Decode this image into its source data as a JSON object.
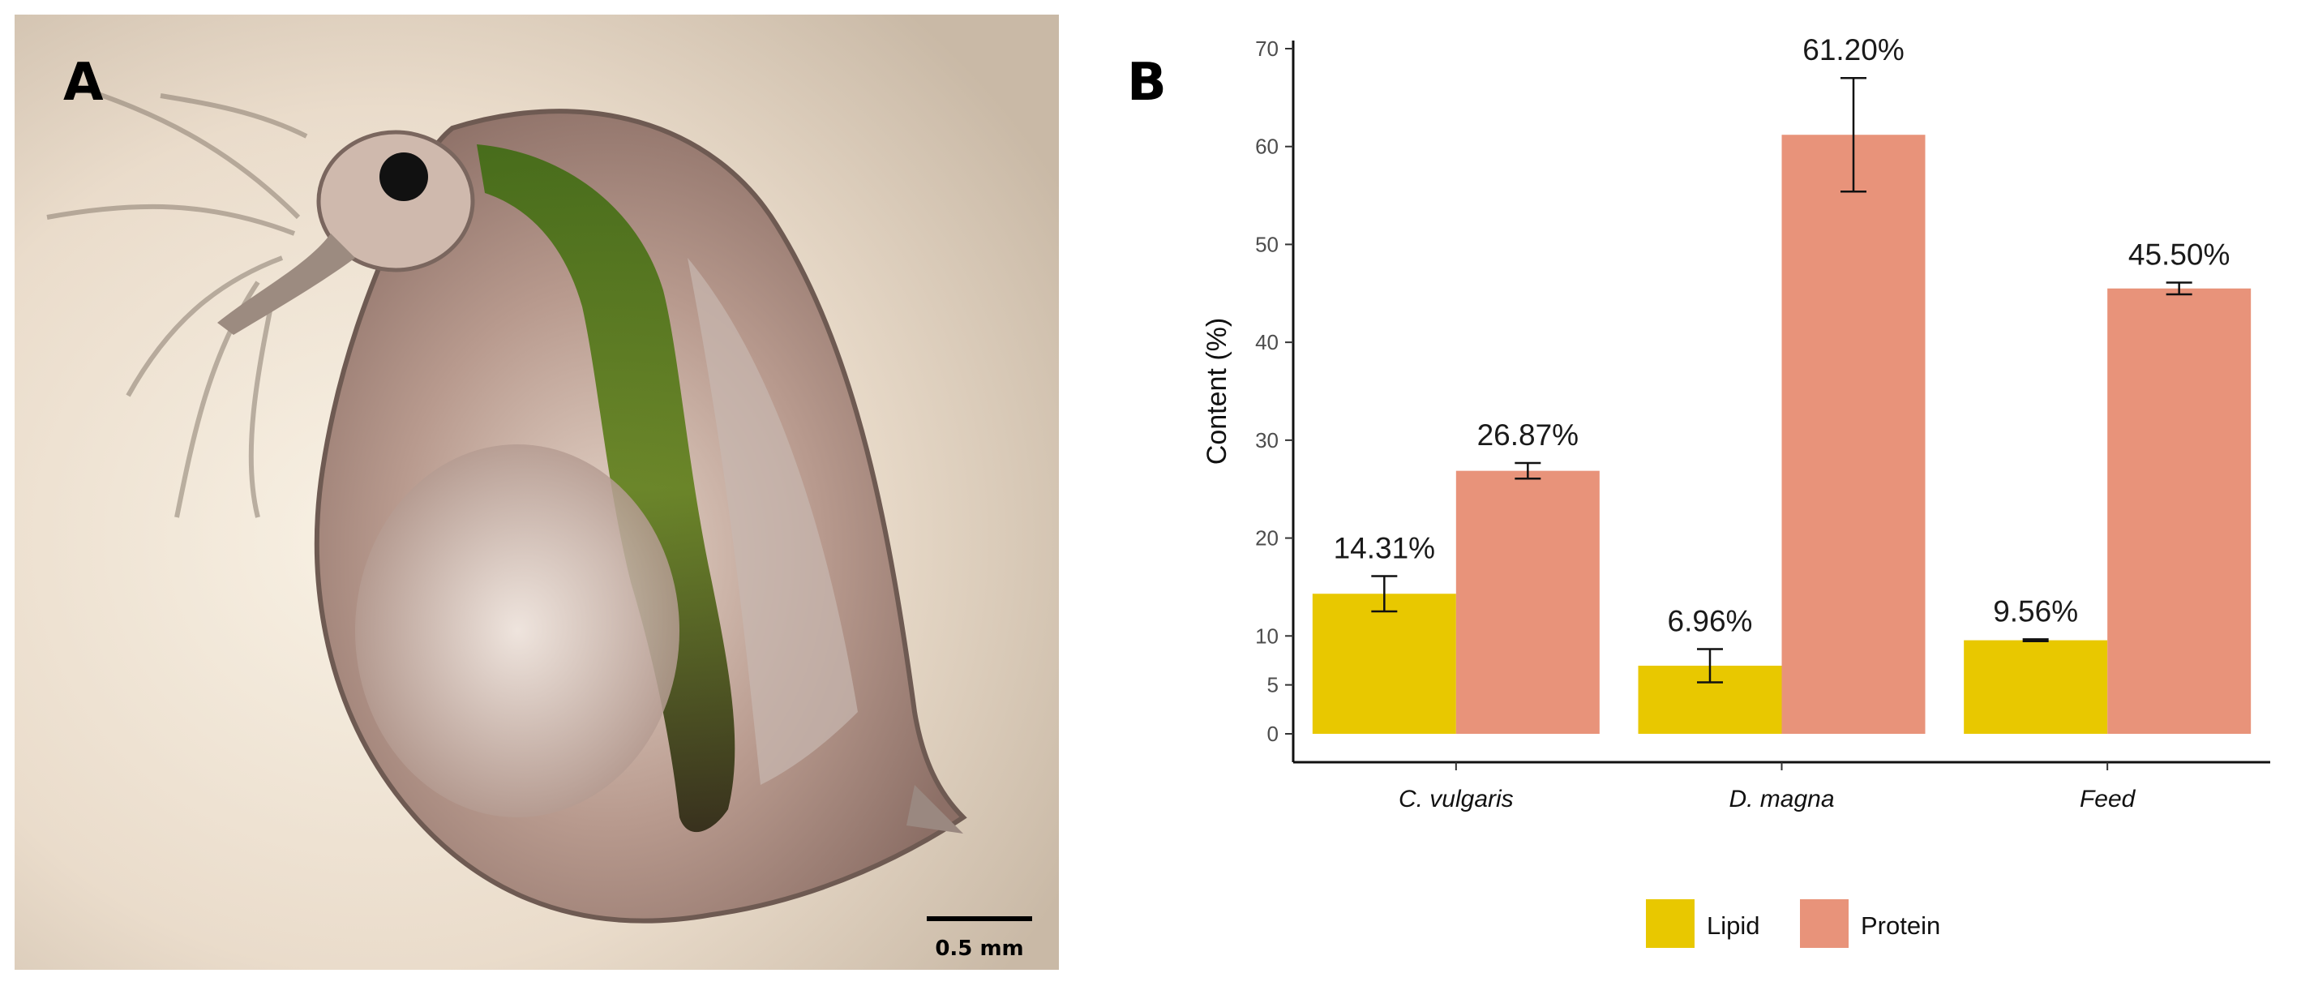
{
  "panels": {
    "a_label": "A",
    "b_label": "B"
  },
  "photo": {
    "scale_bar_label": "0.5 mm"
  },
  "chart_data": {
    "type": "bar",
    "ylabel": "Content (%)",
    "xlabel": "",
    "ylim": [
      0,
      70
    ],
    "yticks": [
      0,
      5,
      10,
      20,
      30,
      40,
      50,
      60,
      70
    ],
    "categories": [
      "C. vulgaris",
      "D. magna",
      "Feed"
    ],
    "series": [
      {
        "name": "Lipid",
        "color": "#e8c800",
        "values": [
          14.31,
          6.96,
          9.56
        ],
        "errors": [
          1.8,
          1.7,
          0.1
        ],
        "labels": [
          "14.31%",
          "6.96%",
          "9.56%"
        ]
      },
      {
        "name": "Protein",
        "color": "#e8937a",
        "values": [
          26.87,
          61.2,
          45.5
        ],
        "errors": [
          0.8,
          5.8,
          0.6
        ],
        "labels": [
          "26.87%",
          "61.20%",
          "45.50%"
        ]
      }
    ],
    "grid": false,
    "legend": "bottom"
  }
}
